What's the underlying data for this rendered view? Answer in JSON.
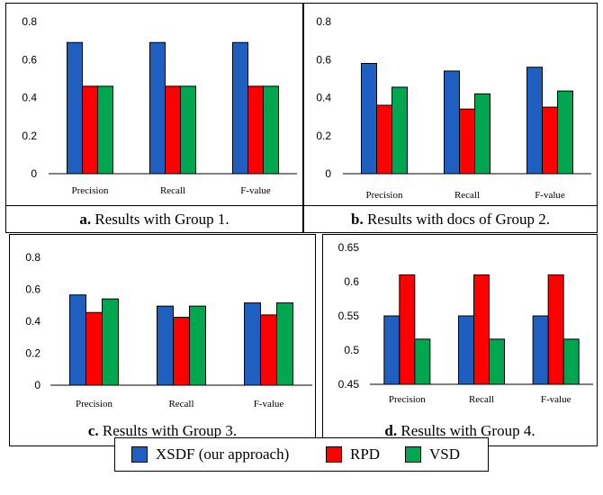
{
  "colors": {
    "XSDF": "#1f5fbf",
    "RPD": "#ff0000",
    "VSD": "#00a650"
  },
  "legend": [
    {
      "name": "XSDF (our approach)",
      "color": "#1f5fbf"
    },
    {
      "name": "RPD",
      "color": "#ff0000"
    },
    {
      "name": "VSD",
      "color": "#00a650"
    }
  ],
  "chart_data": [
    {
      "type": "bar",
      "caption_letter": "a.",
      "caption_text": " Results with Group 1.",
      "categories": [
        "Precision",
        "Recall",
        "F-value"
      ],
      "series": [
        {
          "name": "XSDF (our approach)",
          "values": [
            0.69,
            0.69,
            0.69
          ]
        },
        {
          "name": "RPD",
          "values": [
            0.46,
            0.46,
            0.46
          ]
        },
        {
          "name": "VSD",
          "values": [
            0.46,
            0.46,
            0.46
          ]
        }
      ],
      "yticks": [
        "0",
        "0.2",
        "0.4",
        "0.6",
        "0.8"
      ],
      "ylim": [
        0,
        0.8
      ],
      "grid": false,
      "legend_position": "bottom"
    },
    {
      "type": "bar",
      "caption_letter": "b.",
      "caption_text": " Results with docs of Group 2.",
      "categories": [
        "Precision",
        "Recall",
        "F-value"
      ],
      "series": [
        {
          "name": "XSDF (our approach)",
          "values": [
            0.58,
            0.54,
            0.56
          ]
        },
        {
          "name": "RPD",
          "values": [
            0.36,
            0.34,
            0.35
          ]
        },
        {
          "name": "VSD",
          "values": [
            0.455,
            0.42,
            0.435
          ]
        }
      ],
      "yticks": [
        "0",
        "0.2",
        "0.4",
        "0.6",
        "0.8"
      ],
      "ylim": [
        0,
        0.8
      ],
      "grid": false,
      "legend_position": "bottom"
    },
    {
      "type": "bar",
      "caption_letter": "c.",
      "caption_text": " Results with Group 3.",
      "categories": [
        "Precision",
        "Recall",
        "F-value"
      ],
      "series": [
        {
          "name": "XSDF (our approach)",
          "values": [
            0.565,
            0.495,
            0.515
          ]
        },
        {
          "name": "RPD",
          "values": [
            0.455,
            0.425,
            0.44
          ]
        },
        {
          "name": "VSD",
          "values": [
            0.54,
            0.495,
            0.515
          ]
        }
      ],
      "yticks": [
        "0",
        "0.2",
        "0.4",
        "0.6",
        "0.8"
      ],
      "ylim": [
        0,
        0.8
      ],
      "grid": false,
      "legend_position": "bottom"
    },
    {
      "type": "bar",
      "caption_letter": "d.",
      "caption_text": " Results with Group 4.",
      "categories": [
        "Precision",
        "Recall",
        "F-value"
      ],
      "series": [
        {
          "name": "XSDF (our approach)",
          "values": [
            0.55,
            0.55,
            0.55
          ]
        },
        {
          "name": "RPD",
          "values": [
            0.61,
            0.61,
            0.61
          ]
        },
        {
          "name": "VSD",
          "values": [
            0.516,
            0.516,
            0.516
          ]
        }
      ],
      "yticks": [
        "0.45",
        "0.5",
        "0.55",
        "0.6",
        "0.65"
      ],
      "ylim": [
        0.45,
        0.65
      ],
      "grid": false,
      "legend_position": "bottom"
    }
  ]
}
